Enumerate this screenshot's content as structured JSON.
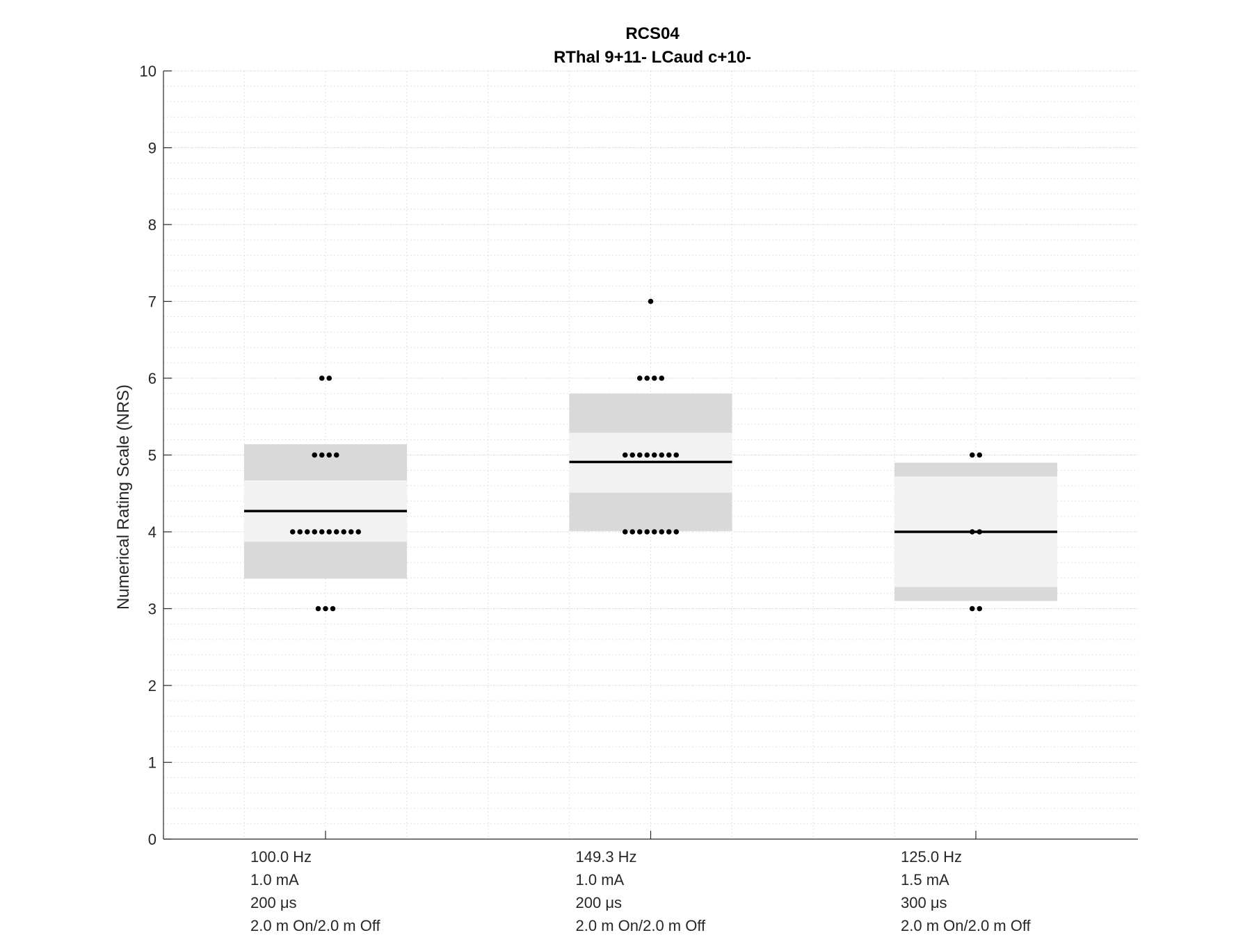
{
  "chart_data": {
    "type": "scatter",
    "title": "RCS04",
    "subtitle": "RThal 9+11- LCaud c+10-",
    "xlabel": "",
    "ylabel": "Numerical Rating Scale (NRS)",
    "ylim": [
      0,
      10
    ],
    "yticks": [
      "0",
      "1",
      "2",
      "3",
      "4",
      "5",
      "6",
      "7",
      "8",
      "9",
      "10"
    ],
    "grid": true,
    "minor_grid": true,
    "categories": [
      {
        "lines": [
          "100.0 Hz",
          "1.0 mA",
          "200 μs",
          "2.0 m On/2.0 m Off"
        ],
        "mean": 4.27,
        "sem_band": [
          3.87,
          4.67
        ],
        "sd_band": [
          3.39,
          5.14
        ],
        "points": [
          {
            "value": 6,
            "count": 2
          },
          {
            "value": 5,
            "count": 4
          },
          {
            "value": 4,
            "count": 10
          },
          {
            "value": 3,
            "count": 3
          }
        ]
      },
      {
        "lines": [
          "149.3 Hz",
          "1.0 mA",
          "200 μs",
          "2.0 m On/2.0 m Off"
        ],
        "mean": 4.91,
        "sem_band": [
          4.51,
          5.29
        ],
        "sd_band": [
          4.01,
          5.8
        ],
        "points": [
          {
            "value": 7,
            "count": 1
          },
          {
            "value": 6,
            "count": 4
          },
          {
            "value": 5,
            "count": 8
          },
          {
            "value": 4,
            "count": 8
          }
        ]
      },
      {
        "lines": [
          "125.0 Hz",
          "1.5 mA",
          "300 μs",
          "2.0 m On/2.0 m Off"
        ],
        "mean": 4.0,
        "sem_band": [
          3.28,
          4.72
        ],
        "sd_band": [
          3.1,
          4.9
        ],
        "points": [
          {
            "value": 5,
            "count": 2
          },
          {
            "value": 4,
            "count": 2
          },
          {
            "value": 3,
            "count": 2
          }
        ]
      }
    ],
    "colors": {
      "sd_band": "#d9d9d9",
      "sem_band": "#f2f2f2",
      "mean_line": "#000000",
      "points": "#000000",
      "grid": "#e0e0e0",
      "axis": "#262626"
    }
  }
}
